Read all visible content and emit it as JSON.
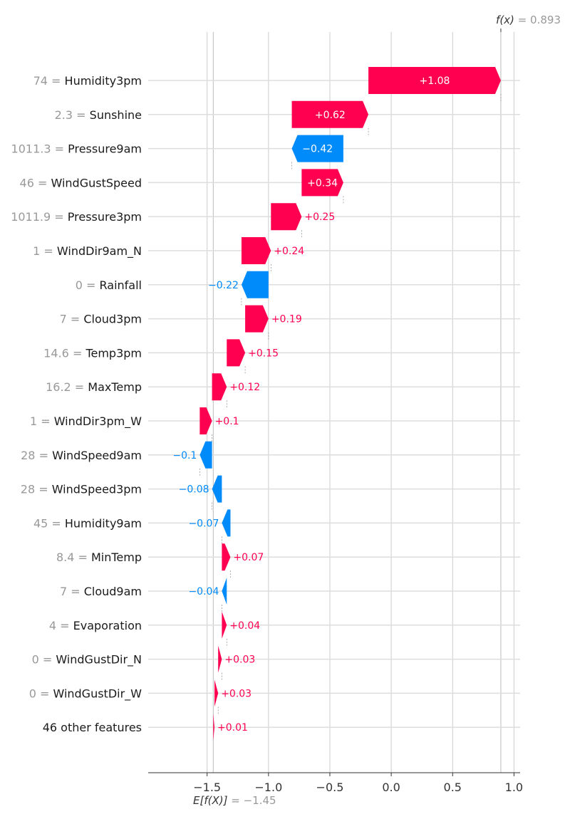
{
  "chart_data": {
    "type": "bar",
    "fx": {
      "label": "f(x)",
      "value": "0.893"
    },
    "base": {
      "label": "E[f(X)]",
      "value": "−1.45",
      "x": -1.45
    },
    "xlim": [
      -1.98,
      1.05
    ],
    "ticks": [
      {
        "v": -1.5,
        "label": "−1.5"
      },
      {
        "v": -1.0,
        "label": "−1.0"
      },
      {
        "v": -0.5,
        "label": "−0.5"
      },
      {
        "v": 0.0,
        "label": "0.0"
      },
      {
        "v": 0.5,
        "label": "0.5"
      },
      {
        "v": 1.0,
        "label": "1.0"
      }
    ],
    "features": [
      {
        "value": "74",
        "name": "Humidity3pm",
        "start": -0.186,
        "end": 0.893,
        "label": "+1.08",
        "sign": "pos"
      },
      {
        "value": "2.3",
        "name": "Sunshine",
        "start": -0.81,
        "end": -0.186,
        "label": "+0.62",
        "sign": "pos"
      },
      {
        "value": "1011.3",
        "name": "Pressure9am",
        "start": -0.39,
        "end": -0.81,
        "label": "−0.42",
        "sign": "neg"
      },
      {
        "value": "46",
        "name": "WindGustSpeed",
        "start": -0.73,
        "end": -0.39,
        "label": "+0.34",
        "sign": "pos"
      },
      {
        "value": "1011.9",
        "name": "Pressure3pm",
        "start": -0.98,
        "end": -0.73,
        "label": "+0.25",
        "sign": "pos"
      },
      {
        "value": "1",
        "name": "WindDir9am_N",
        "start": -1.22,
        "end": -0.98,
        "label": "+0.24",
        "sign": "pos"
      },
      {
        "value": "0",
        "name": "Rainfall",
        "start": -1.0,
        "end": -1.22,
        "label": "−0.22",
        "sign": "neg"
      },
      {
        "value": "7",
        "name": "Cloud3pm",
        "start": -1.19,
        "end": -1.0,
        "label": "+0.19",
        "sign": "pos"
      },
      {
        "value": "14.6",
        "name": "Temp3pm",
        "start": -1.34,
        "end": -1.19,
        "label": "+0.15",
        "sign": "pos"
      },
      {
        "value": "16.2",
        "name": "MaxTemp",
        "start": -1.46,
        "end": -1.34,
        "label": "+0.12",
        "sign": "pos"
      },
      {
        "value": "1",
        "name": "WindDir3pm_W",
        "start": -1.56,
        "end": -1.46,
        "label": "+0.1",
        "sign": "pos"
      },
      {
        "value": "28",
        "name": "WindSpeed9am",
        "start": -1.46,
        "end": -1.56,
        "label": "−0.1",
        "sign": "neg"
      },
      {
        "value": "28",
        "name": "WindSpeed3pm",
        "start": -1.38,
        "end": -1.46,
        "label": "−0.08",
        "sign": "neg"
      },
      {
        "value": "45",
        "name": "Humidity9am",
        "start": -1.31,
        "end": -1.38,
        "label": "−0.07",
        "sign": "neg"
      },
      {
        "value": "8.4",
        "name": "MinTemp",
        "start": -1.38,
        "end": -1.31,
        "label": "+0.07",
        "sign": "pos"
      },
      {
        "value": "7",
        "name": "Cloud9am",
        "start": -1.34,
        "end": -1.38,
        "label": "−0.04",
        "sign": "neg"
      },
      {
        "value": "4",
        "name": "Evaporation",
        "start": -1.38,
        "end": -1.34,
        "label": "+0.04",
        "sign": "pos"
      },
      {
        "value": "0",
        "name": "WindGustDir_N",
        "start": -1.41,
        "end": -1.38,
        "label": "+0.03",
        "sign": "pos"
      },
      {
        "value": "0",
        "name": "WindGustDir_W",
        "start": -1.44,
        "end": -1.41,
        "label": "+0.03",
        "sign": "pos"
      },
      {
        "value": "",
        "name": "46 other features",
        "start": -1.45,
        "end": -1.44,
        "label": "+0.01",
        "sign": "pos"
      }
    ],
    "colors": {
      "pos": "#ff0051",
      "neg": "#008bfb",
      "grid": "#cccccc",
      "axis": "#333333"
    }
  }
}
